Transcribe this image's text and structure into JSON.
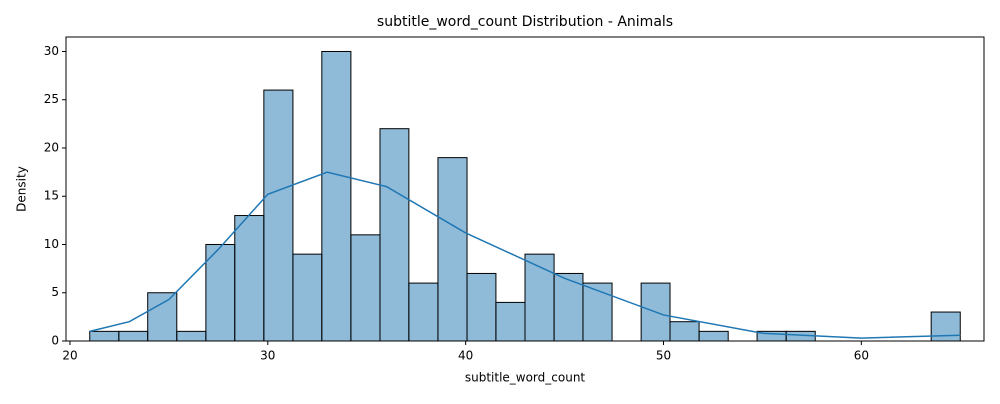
{
  "chart_data": {
    "type": "histogram",
    "title": "subtitle_word_count Distribution - Animals",
    "x_label": "subtitle_word_count",
    "y_label": "Density",
    "bins": [
      21,
      22.47,
      23.93,
      25.4,
      26.87,
      28.33,
      29.8,
      31.27,
      32.73,
      34.2,
      35.67,
      37.13,
      38.6,
      40.07,
      41.53,
      43,
      44.47,
      45.93,
      47.4,
      48.87,
      50.33,
      51.8,
      53.27,
      54.73,
      56.2,
      57.67,
      59.13,
      60.6,
      62.07,
      63.53,
      65
    ],
    "values": [
      1,
      1,
      5,
      1,
      10,
      13,
      26,
      9,
      30,
      11,
      22,
      6,
      19,
      7,
      4,
      9,
      7,
      6,
      0,
      6,
      2,
      1,
      0,
      1,
      1,
      0,
      0,
      0,
      0,
      3
    ],
    "color": "#1f77b4",
    "edgecolor": "#000000",
    "kde": {
      "color": "#1f77b4",
      "x": [
        21,
        23,
        25,
        27.5,
        30,
        33,
        36,
        40,
        45,
        50,
        55,
        60,
        65
      ],
      "values": [
        1.0,
        2.0,
        4.3,
        9.5,
        15.2,
        17.5,
        16.0,
        11.2,
        6.5,
        2.7,
        0.8,
        0.3,
        0.6
      ]
    },
    "xlim": [
      19.8,
      66.2
    ],
    "xticks": [
      20,
      30,
      40,
      50,
      60
    ],
    "ylim": [
      0,
      31.5
    ],
    "yticks": [
      0,
      5,
      10,
      15,
      20,
      25,
      30
    ]
  }
}
